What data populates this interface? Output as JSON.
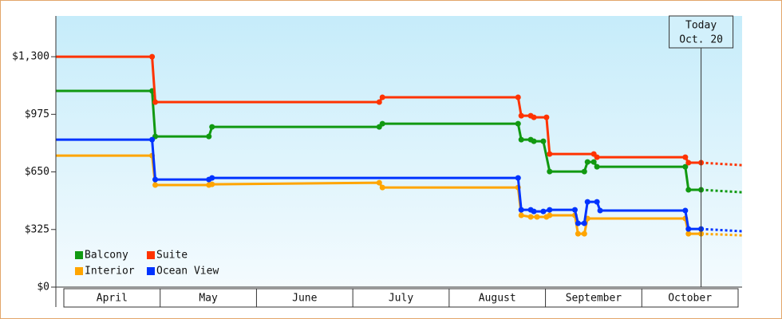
{
  "chart_data": {
    "type": "step-line",
    "xlim": [
      -2.5,
      215
    ],
    "ylim": [
      0,
      1530
    ],
    "yticks": [
      {
        "value": 0,
        "label": "$0"
      },
      {
        "value": 325,
        "label": "$325"
      },
      {
        "value": 650,
        "label": "$650"
      },
      {
        "value": 975,
        "label": "$975"
      },
      {
        "value": 1300,
        "label": "$1,300"
      }
    ],
    "categories": [
      "April",
      "May",
      "June",
      "July",
      "August",
      "September",
      "October"
    ],
    "legend": "bottom-left",
    "annotation": {
      "lines": [
        "Today",
        "Oct. 20"
      ],
      "x": 202
    },
    "series": [
      {
        "name": "Balcony",
        "color": "#119911",
        "x": [
          -2.5,
          28,
          29,
          46,
          47,
          100,
          101,
          144,
          145,
          148,
          149,
          152,
          154,
          165,
          166,
          168,
          169,
          197,
          198,
          202
        ],
        "values": [
          1107,
          1107,
          850,
          850,
          904,
          904,
          922,
          922,
          832,
          832,
          823,
          823,
          652,
          652,
          706,
          706,
          679,
          679,
          549,
          549
        ],
        "forecast": {
          "x": [
            202,
            215
          ],
          "values": [
            549,
            535
          ]
        }
      },
      {
        "name": "Suite",
        "color": "#ff3300",
        "x": [
          -2.5,
          28,
          29,
          100,
          101,
          144,
          145,
          148,
          149,
          153,
          154,
          168,
          169,
          197,
          198,
          202
        ],
        "values": [
          1300,
          1300,
          1044,
          1044,
          1071,
          1071,
          967,
          967,
          958,
          958,
          751,
          751,
          733,
          733,
          702,
          702
        ],
        "forecast": {
          "x": [
            202,
            215
          ],
          "values": [
            702,
            688
          ]
        }
      },
      {
        "name": "Interior",
        "color": "#ffa500",
        "x": [
          -2.5,
          28,
          29,
          46,
          47,
          100,
          101,
          144,
          145,
          148,
          150,
          153,
          154,
          162,
          163,
          165,
          166,
          197,
          198,
          202
        ],
        "values": [
          742,
          742,
          576,
          576,
          580,
          589,
          562,
          562,
          405,
          396,
          396,
          396,
          405,
          405,
          301,
          301,
          387,
          387,
          301,
          301
        ],
        "forecast": {
          "x": [
            202,
            215
          ],
          "values": [
            301,
            292
          ]
        }
      },
      {
        "name": "Ocean View",
        "color": "#0033ff",
        "x": [
          -2.5,
          28,
          29,
          46,
          47,
          144,
          145,
          148,
          149,
          152,
          154,
          162,
          163,
          165,
          166,
          169,
          170,
          197,
          198,
          202
        ],
        "values": [
          832,
          832,
          607,
          607,
          616,
          616,
          436,
          436,
          427,
          427,
          436,
          436,
          360,
          360,
          481,
          481,
          432,
          432,
          328,
          328
        ],
        "forecast": {
          "x": [
            202,
            215
          ],
          "values": [
            328,
            315
          ]
        }
      }
    ]
  }
}
